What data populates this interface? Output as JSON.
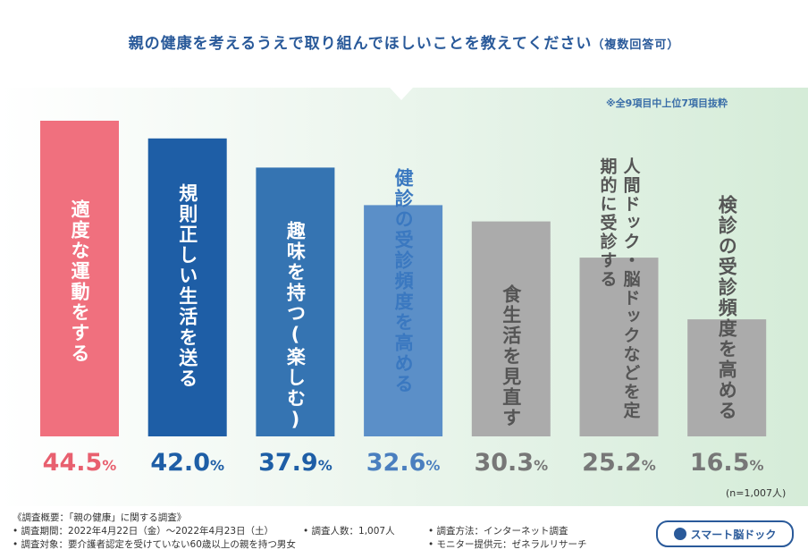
{
  "title": "親の健康を考えるうえで取り組んでほしいことを教えてください",
  "title_suffix": "（複数回答可）",
  "note": "※全9項目中上位7項目抜粋",
  "sample_note": "(n=1,007人)",
  "chart_data": {
    "type": "bar",
    "categories": [
      "適度な運動をする",
      "規則正しい生活を送る",
      "趣味を持つ(楽しむ)",
      "健診の受診頻度を高める",
      "食生活を見直す",
      "人間ドック・脳ドックなどを定期的に受診する",
      "検診の受診頻度を高める"
    ],
    "values": [
      44.5,
      42.0,
      37.9,
      32.6,
      30.3,
      25.2,
      16.5
    ],
    "value_labels": [
      "44.5",
      "42.0",
      "37.9",
      "32.6",
      "30.3",
      "25.2",
      "16.5"
    ],
    "unit": "%",
    "bar_colors": [
      "#f0707e",
      "#1e5ea6",
      "#3574b2",
      "#5b8fc8",
      "#ababab",
      "#ababab",
      "#ababab"
    ],
    "label_colors": [
      "#ffffff",
      "#ffffff",
      "#ffffff",
      "#ffffff",
      "#ffffff",
      "#ffffff",
      "#ffffff"
    ],
    "value_colors": [
      "#e8606f",
      "#1e5ea6",
      "#1e5ea6",
      "#4a7fbf",
      "#777777",
      "#777777",
      "#777777"
    ],
    "ylim": [
      0,
      50
    ]
  },
  "footer": {
    "heading": "《調査概要：「親の健康」に関する調査》",
    "period": "• 調査期間：2022年4月22日（金）～2022年4月23日（土）",
    "count": "• 調査人数：1,007人",
    "method": "• 調査方法：インターネット調査",
    "target": "• 調査対象：要介護者認定を受けていない60歳以上の親を持つ男女",
    "provider": "• モニター提供元：ゼネラルリサーチ"
  },
  "logo_text": "スマート脳ドック"
}
